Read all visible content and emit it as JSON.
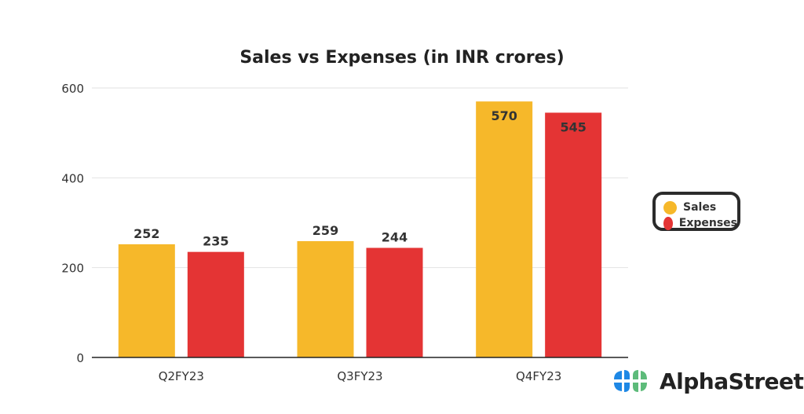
{
  "chart_data": {
    "type": "bar",
    "title": "Sales vs Expenses (in INR crores)",
    "categories": [
      "Q2FY23",
      "Q3FY23",
      "Q4FY23"
    ],
    "series": [
      {
        "name": "Sales",
        "color": "#F6B82A",
        "values": [
          252,
          259,
          570
        ]
      },
      {
        "name": "Expenses",
        "color": "#E43434",
        "values": [
          235,
          244,
          545
        ]
      }
    ],
    "yticks": [
      0,
      200,
      400,
      600
    ],
    "ylim": [
      0,
      600
    ],
    "xlabel": "",
    "ylabel": "",
    "grid": true,
    "legend_position": "right"
  },
  "brand": {
    "name": "AlphaStreet"
  }
}
